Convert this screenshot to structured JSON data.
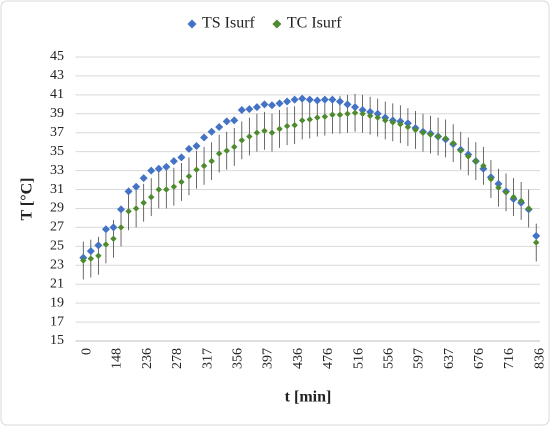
{
  "chart_data": {
    "type": "scatter",
    "x_label": "t [min]",
    "y_label": "T [°C]",
    "legend": "top",
    "grid": true,
    "categories": [
      "0",
      null,
      null,
      null,
      "148",
      null,
      null,
      null,
      "236",
      null,
      null,
      null,
      "278",
      null,
      null,
      null,
      "317",
      null,
      null,
      null,
      "356",
      null,
      null,
      null,
      "397",
      null,
      null,
      null,
      "436",
      null,
      null,
      null,
      "476",
      null,
      null,
      null,
      "516",
      null,
      null,
      null,
      "556",
      null,
      null,
      null,
      "597",
      null,
      null,
      null,
      "637",
      null,
      null,
      null,
      "676",
      null,
      null,
      null,
      "716",
      null,
      null,
      null,
      "836"
    ],
    "ylim": [
      15,
      45
    ],
    "yticks": [
      15,
      17,
      19,
      21,
      23,
      25,
      27,
      29,
      31,
      33,
      35,
      37,
      39,
      41,
      43,
      45
    ],
    "series": [
      {
        "name": "TS Isurf",
        "color": "#4472c4",
        "values": [
          23.8,
          24.5,
          25.1,
          26.8,
          27.0,
          28.9,
          30.8,
          31.3,
          32.2,
          33.0,
          33.2,
          33.4,
          34.0,
          34.4,
          35.3,
          35.6,
          36.5,
          37.1,
          37.6,
          38.2,
          38.3,
          39.4,
          39.5,
          39.7,
          40.0,
          39.9,
          40.1,
          40.3,
          40.5,
          40.6,
          40.5,
          40.4,
          40.5,
          40.5,
          40.3,
          40.0,
          39.7,
          39.4,
          39.2,
          39.0,
          38.6,
          38.3,
          38.2,
          38.0,
          37.5,
          37.1,
          36.9,
          36.6,
          36.3,
          35.8,
          35.2,
          34.7,
          34.0,
          33.2,
          32.3,
          31.6,
          30.8,
          30.0,
          29.6,
          28.9,
          26.1
        ]
      },
      {
        "name": "TC Isurf",
        "color": "#4e8a2e",
        "values": [
          23.5,
          23.7,
          24.0,
          25.2,
          25.8,
          27.0,
          28.7,
          29.0,
          29.6,
          30.2,
          31.0,
          31.0,
          31.3,
          31.8,
          32.4,
          33.1,
          33.5,
          34.0,
          34.8,
          35.1,
          35.5,
          36.2,
          36.6,
          37.0,
          37.2,
          37.0,
          37.4,
          37.7,
          37.8,
          38.3,
          38.4,
          38.6,
          38.7,
          38.9,
          38.9,
          39.0,
          39.1,
          39.0,
          38.8,
          38.6,
          38.3,
          38.1,
          37.9,
          37.6,
          37.3,
          37.0,
          36.8,
          36.6,
          36.4,
          35.9,
          35.1,
          34.5,
          34.0,
          33.5,
          32.1,
          31.2,
          30.7,
          30.2,
          29.8,
          29.0,
          25.4
        ],
        "errors": [
          2,
          2,
          2,
          2,
          2,
          2,
          2,
          2,
          2,
          2,
          2,
          2,
          2,
          2,
          2,
          2,
          2,
          2,
          2,
          2,
          2,
          2,
          2,
          2,
          2,
          2,
          2,
          2,
          2,
          2,
          2,
          2,
          2,
          2,
          2,
          2,
          2,
          2,
          2,
          2,
          2,
          2,
          2,
          2,
          2,
          2,
          2,
          2,
          2,
          2,
          2,
          2,
          2,
          2,
          2,
          2,
          2,
          2,
          2,
          2,
          2
        ]
      }
    ]
  }
}
